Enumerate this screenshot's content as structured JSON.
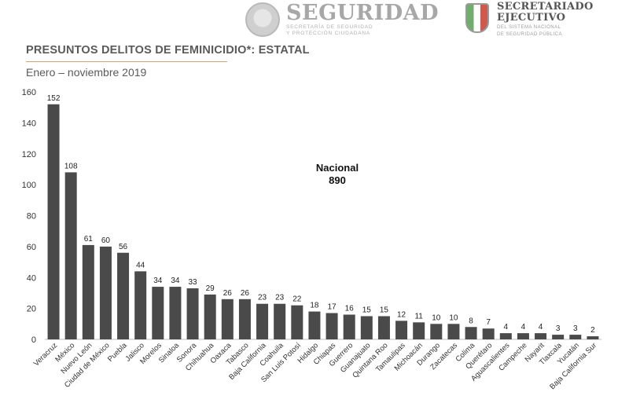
{
  "header": {
    "logo_left": {
      "title": "SEGURIDAD",
      "subtitle_line1": "SECRETARÍA DE SEGURIDAD",
      "subtitle_line2": "Y PROTECCIÓN CIUDADANA",
      "icon": "mexico-seal-icon"
    },
    "logo_right": {
      "title_line1": "SECRETARIADO",
      "title_line2": "EJECUTIVO",
      "subtitle_line1": "DEL SISTEMA NACIONAL",
      "subtitle_line2": "DE SEGURIDAD PÚBLICA",
      "icon": "sesnsp-shield-icon"
    }
  },
  "chart_data": {
    "type": "bar",
    "title": "PRESUNTOS DELITOS DE FEMINICIDIO*: ESTATAL",
    "subtitle": "Enero – noviembre 2019",
    "annotation": {
      "label": "Nacional",
      "value": "890"
    },
    "categories": [
      "Veracruz",
      "México",
      "Nuevo León",
      "Ciudad de México",
      "Puebla",
      "Jalisco",
      "Morelos",
      "Sinaloa",
      "Sonora",
      "Chihuahua",
      "Oaxaca",
      "Tabasco",
      "Baja California",
      "Coahuila",
      "San Luis Potosí",
      "Hidalgo",
      "Chiapas",
      "Guerrero",
      "Guanajuato",
      "Quintana Roo",
      "Tamaulipas",
      "Michoacán",
      "Durango",
      "Zacatecas",
      "Colima",
      "Querétaro",
      "Aguascalientes",
      "Campeche",
      "Nayarit",
      "Tlaxcala",
      "Yucatán",
      "Baja California Sur"
    ],
    "values": [
      152,
      108,
      61,
      60,
      56,
      44,
      34,
      34,
      33,
      29,
      26,
      26,
      23,
      23,
      22,
      18,
      17,
      16,
      15,
      15,
      12,
      11,
      10,
      10,
      8,
      7,
      4,
      4,
      4,
      3,
      3,
      2
    ],
    "ylim": [
      0,
      160
    ],
    "yticks": [
      0,
      20,
      40,
      60,
      80,
      100,
      120,
      140,
      160
    ],
    "data_labels": true,
    "grid": false,
    "bar_color": "#4a4a4a"
  }
}
